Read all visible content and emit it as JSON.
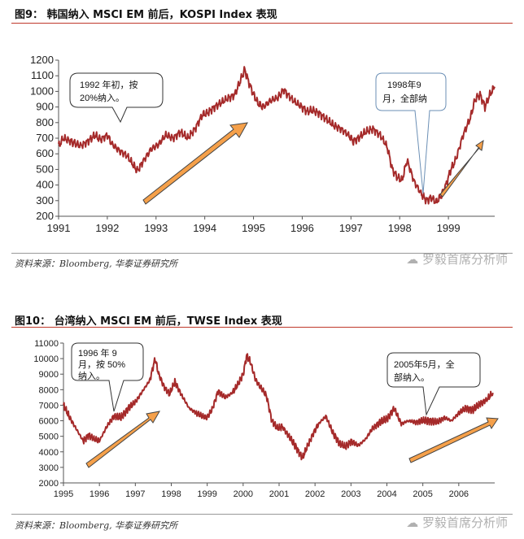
{
  "figures": [
    {
      "title": "图9： 韩国纳入 MSCI EM 前后，KOSPI Index 表现",
      "source": "资料来源：Bloomberg, 华泰证券研究所",
      "watermark": "罗毅首席分析师"
    },
    {
      "title": "图10： 台湾纳入 MSCI EM 前后，TWSE Index 表现",
      "source": "资料来源：Bloomberg, 华泰证券研究所",
      "watermark": "罗毅首席分析师"
    }
  ],
  "chart_data": [
    {
      "type": "line",
      "title": "韩国纳入 MSCI EM 前后，KOSPI Index 表现",
      "x_ticks": [
        "1991",
        "1992",
        "1993",
        "1994",
        "1995",
        "1996",
        "1997",
        "1998",
        "1999"
      ],
      "y_ticks": [
        200,
        300,
        400,
        500,
        600,
        700,
        800,
        900,
        1000,
        1100,
        1200
      ],
      "xlim": [
        1991.0,
        1999.95
      ],
      "ylim": [
        200,
        1200
      ],
      "line_color": "#a52a2a",
      "series": [
        {
          "name": "KOSPI Index",
          "x": [
            1991.0,
            1991.1,
            1991.25,
            1991.45,
            1991.6,
            1991.75,
            1991.85,
            1992.0,
            1992.1,
            1992.25,
            1992.4,
            1992.55,
            1992.62,
            1992.75,
            1992.9,
            1993.05,
            1993.2,
            1993.35,
            1993.5,
            1993.65,
            1993.8,
            1993.95,
            1994.05,
            1994.2,
            1994.35,
            1994.5,
            1994.62,
            1994.72,
            1994.82,
            1994.9,
            1995.0,
            1995.1,
            1995.2,
            1995.35,
            1995.5,
            1995.62,
            1995.7,
            1995.85,
            1996.0,
            1996.1,
            1996.2,
            1996.35,
            1996.5,
            1996.65,
            1996.8,
            1996.95,
            1997.05,
            1997.15,
            1997.3,
            1997.45,
            1997.6,
            1997.75,
            1997.85,
            1997.95,
            1998.05,
            1998.15,
            1998.3,
            1998.45,
            1998.55,
            1998.65,
            1998.75,
            1998.85,
            1998.95,
            1999.05,
            1999.15,
            1999.3,
            1999.45,
            1999.55,
            1999.65,
            1999.75,
            1999.85,
            1999.95
          ],
          "values": [
            650,
            700,
            680,
            650,
            680,
            720,
            690,
            720,
            660,
            620,
            590,
            520,
            490,
            560,
            630,
            660,
            720,
            700,
            740,
            700,
            760,
            850,
            860,
            900,
            930,
            960,
            980,
            1060,
            1140,
            1060,
            980,
            920,
            900,
            940,
            960,
            1010,
            980,
            930,
            900,
            870,
            880,
            860,
            820,
            780,
            760,
            720,
            680,
            700,
            740,
            760,
            720,
            640,
            500,
            450,
            430,
            560,
            420,
            340,
            300,
            320,
            290,
            330,
            400,
            500,
            560,
            720,
            830,
            950,
            980,
            900,
            980,
            1030
          ],
          "annotation": "1992 年初，按 20%纳入。",
          "annotation_point": [
            1992.3,
            610
          ]
        }
      ]
    },
    {
      "type": "line",
      "title": "台湾纳入 MSCI EM 前后，TWSE Index 表现",
      "x_ticks": [
        "1995",
        "1996",
        "1997",
        "1998",
        "1999",
        "2000",
        "2001",
        "2002",
        "2003",
        "2004",
        "2005",
        "2006"
      ],
      "y_ticks": [
        2000,
        3000,
        4000,
        5000,
        6000,
        7000,
        8000,
        9000,
        10000,
        11000
      ],
      "xlim": [
        1995.0,
        2007.0
      ],
      "ylim": [
        2000,
        11000
      ],
      "line_color": "#a52a2a",
      "series": [
        {
          "name": "TWSE Index",
          "x": [
            1995.0,
            1995.15,
            1995.35,
            1995.55,
            1995.7,
            1995.85,
            1996.0,
            1996.2,
            1996.4,
            1996.6,
            1996.8,
            1997.0,
            1997.2,
            1997.4,
            1997.55,
            1997.65,
            1997.8,
            1997.95,
            1998.1,
            1998.3,
            1998.5,
            1998.7,
            1998.85,
            1999.0,
            1999.15,
            1999.3,
            1999.5,
            1999.7,
            1999.85,
            2000.0,
            2000.1,
            2000.2,
            2000.35,
            2000.5,
            2000.65,
            2000.8,
            2000.95,
            2001.1,
            2001.3,
            2001.5,
            2001.65,
            2001.8,
            2001.95,
            2002.1,
            2002.3,
            2002.5,
            2002.7,
            2002.85,
            2003.0,
            2003.2,
            2003.4,
            2003.6,
            2003.8,
            2004.0,
            2004.2,
            2004.4,
            2004.6,
            2004.8,
            2005.0,
            2005.2,
            2005.4,
            2005.6,
            2005.8,
            2006.0,
            2006.2,
            2006.4,
            2006.6,
            2006.8,
            2006.95
          ],
          "values": [
            7000,
            6300,
            5500,
            4700,
            5100,
            4800,
            4700,
            5600,
            6300,
            6200,
            6800,
            7200,
            7900,
            8600,
            10000,
            9000,
            8200,
            7700,
            8500,
            7600,
            6800,
            6500,
            6300,
            6200,
            6800,
            7900,
            7500,
            7800,
            8300,
            9000,
            10200,
            9800,
            8600,
            8100,
            7600,
            6000,
            5500,
            5600,
            4900,
            4200,
            3600,
            4400,
            5200,
            5800,
            6300,
            5200,
            4500,
            4300,
            4700,
            4400,
            4800,
            5500,
            5900,
            6100,
            6800,
            5800,
            6000,
            5900,
            6000,
            6000,
            5900,
            6200,
            6000,
            6500,
            6800,
            6700,
            7100,
            7400,
            7800
          ],
          "annotation": "1996 年 9 月，按 50% 纳入。",
          "annotation_point": [
            1996.45,
            6000
          ]
        }
      ]
    }
  ]
}
